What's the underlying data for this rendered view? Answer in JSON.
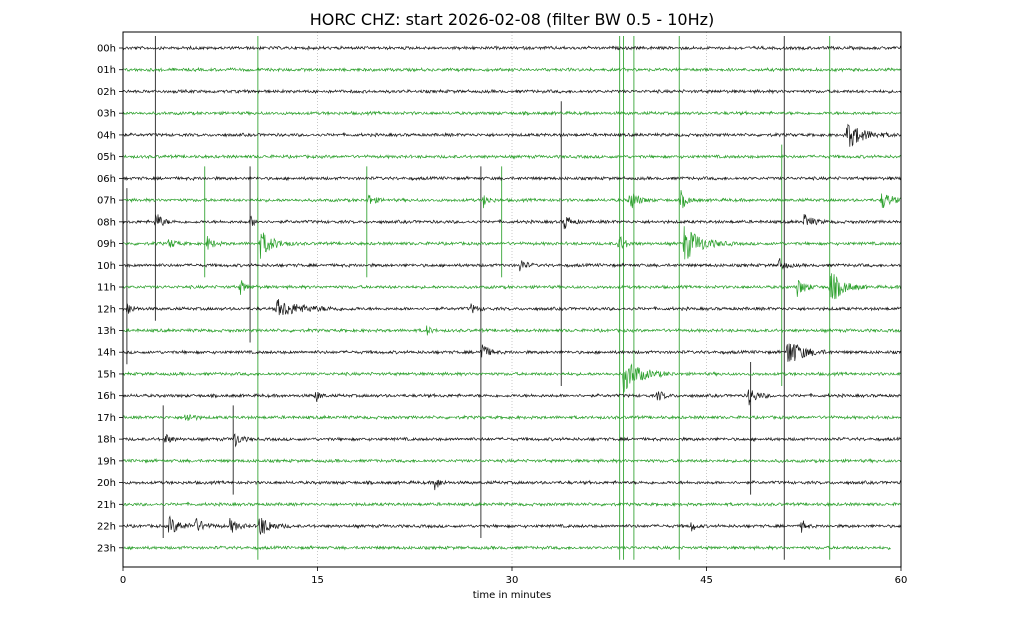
{
  "chart_data": {
    "type": "line",
    "title": "HORC CHZ: start 2026-02-08 (filter BW 0.5 - 10Hz)",
    "xlabel": "time in minutes",
    "ylabel": "",
    "xlim": [
      0,
      60
    ],
    "x_ticks": [
      0,
      15,
      30,
      45,
      60
    ],
    "x_tick_labels": [
      "0",
      "15",
      "30",
      "45",
      "60"
    ],
    "grid": "vertical dotted lines at 15, 30, 45",
    "rows": [
      {
        "label": "00h",
        "color": "#1a1a1a",
        "end": 60
      },
      {
        "label": "01h",
        "color": "#2ca02c",
        "end": 60
      },
      {
        "label": "02h",
        "color": "#1a1a1a",
        "end": 60
      },
      {
        "label": "03h",
        "color": "#2ca02c",
        "end": 60
      },
      {
        "label": "04h",
        "color": "#1a1a1a",
        "end": 60
      },
      {
        "label": "05h",
        "color": "#2ca02c",
        "end": 60
      },
      {
        "label": "06h",
        "color": "#1a1a1a",
        "end": 60
      },
      {
        "label": "07h",
        "color": "#2ca02c",
        "end": 60
      },
      {
        "label": "08h",
        "color": "#1a1a1a",
        "end": 60
      },
      {
        "label": "09h",
        "color": "#2ca02c",
        "end": 60
      },
      {
        "label": "10h",
        "color": "#1a1a1a",
        "end": 60
      },
      {
        "label": "11h",
        "color": "#2ca02c",
        "end": 60
      },
      {
        "label": "12h",
        "color": "#1a1a1a",
        "end": 60
      },
      {
        "label": "13h",
        "color": "#2ca02c",
        "end": 60
      },
      {
        "label": "14h",
        "color": "#1a1a1a",
        "end": 60
      },
      {
        "label": "15h",
        "color": "#2ca02c",
        "end": 60
      },
      {
        "label": "16h",
        "color": "#1a1a1a",
        "end": 60
      },
      {
        "label": "17h",
        "color": "#2ca02c",
        "end": 60
      },
      {
        "label": "18h",
        "color": "#1a1a1a",
        "end": 60
      },
      {
        "label": "19h",
        "color": "#2ca02c",
        "end": 60
      },
      {
        "label": "20h",
        "color": "#1a1a1a",
        "end": 60
      },
      {
        "label": "21h",
        "color": "#2ca02c",
        "end": 60
      },
      {
        "label": "22h",
        "color": "#1a1a1a",
        "end": 60
      },
      {
        "label": "23h",
        "color": "#2ca02c",
        "end": 59.2
      }
    ],
    "events": [
      {
        "row": 4,
        "t": 55.8,
        "amp": 14,
        "dur": 1.6
      },
      {
        "row": 7,
        "t": 39.0,
        "amp": 12,
        "dur": 0.8
      },
      {
        "row": 7,
        "t": 43.0,
        "amp": 10,
        "dur": 0.6
      },
      {
        "row": 7,
        "t": 18.8,
        "amp": 8,
        "dur": 0.6
      },
      {
        "row": 7,
        "t": 27.8,
        "amp": 7,
        "dur": 0.5
      },
      {
        "row": 7,
        "t": 58.5,
        "amp": 9,
        "dur": 1.0
      },
      {
        "row": 8,
        "t": 2.5,
        "amp": 11,
        "dur": 0.6
      },
      {
        "row": 8,
        "t": 34.0,
        "amp": 9,
        "dur": 0.6
      },
      {
        "row": 8,
        "t": 9.8,
        "amp": 7,
        "dur": 0.4
      },
      {
        "row": 8,
        "t": 52.5,
        "amp": 8,
        "dur": 0.8
      },
      {
        "row": 9,
        "t": 10.6,
        "amp": 14,
        "dur": 1.2
      },
      {
        "row": 9,
        "t": 43.2,
        "amp": 20,
        "dur": 1.6
      },
      {
        "row": 9,
        "t": 38.2,
        "amp": 10,
        "dur": 0.6
      },
      {
        "row": 9,
        "t": 3.5,
        "amp": 6,
        "dur": 0.6
      },
      {
        "row": 9,
        "t": 6.5,
        "amp": 7,
        "dur": 0.6
      },
      {
        "row": 10,
        "t": 30.6,
        "amp": 8,
        "dur": 0.5
      },
      {
        "row": 10,
        "t": 50.5,
        "amp": 8,
        "dur": 0.6
      },
      {
        "row": 11,
        "t": 54.5,
        "amp": 18,
        "dur": 1.2
      },
      {
        "row": 11,
        "t": 52.0,
        "amp": 9,
        "dur": 0.8
      },
      {
        "row": 11,
        "t": 9.0,
        "amp": 8,
        "dur": 0.6
      },
      {
        "row": 12,
        "t": 11.8,
        "amp": 9,
        "dur": 2.6
      },
      {
        "row": 12,
        "t": 0.3,
        "amp": 8,
        "dur": 0.5
      },
      {
        "row": 12,
        "t": 26.8,
        "amp": 5,
        "dur": 0.6
      },
      {
        "row": 13,
        "t": 23.4,
        "amp": 6,
        "dur": 0.4
      },
      {
        "row": 14,
        "t": 51.2,
        "amp": 16,
        "dur": 1.4
      },
      {
        "row": 14,
        "t": 27.6,
        "amp": 12,
        "dur": 0.6
      },
      {
        "row": 15,
        "t": 38.6,
        "amp": 18,
        "dur": 1.6
      },
      {
        "row": 16,
        "t": 48.2,
        "amp": 10,
        "dur": 0.8
      },
      {
        "row": 16,
        "t": 14.8,
        "amp": 8,
        "dur": 0.4
      },
      {
        "row": 16,
        "t": 41.2,
        "amp": 6,
        "dur": 0.6
      },
      {
        "row": 17,
        "t": 4.8,
        "amp": 7,
        "dur": 0.6
      },
      {
        "row": 18,
        "t": 8.5,
        "amp": 10,
        "dur": 0.6
      },
      {
        "row": 18,
        "t": 3.2,
        "amp": 7,
        "dur": 0.5
      },
      {
        "row": 20,
        "t": 24.0,
        "amp": 9,
        "dur": 0.5
      },
      {
        "row": 22,
        "t": 10.5,
        "amp": 12,
        "dur": 1.0
      },
      {
        "row": 22,
        "t": 3.5,
        "amp": 9,
        "dur": 1.2
      },
      {
        "row": 22,
        "t": 5.5,
        "amp": 7,
        "dur": 1.0
      },
      {
        "row": 22,
        "t": 8.2,
        "amp": 8,
        "dur": 0.8
      },
      {
        "row": 22,
        "t": 52.3,
        "amp": 8,
        "dur": 0.4
      },
      {
        "row": 22,
        "t": 43.8,
        "amp": 6,
        "dur": 0.4
      }
    ],
    "spikes": [
      {
        "t": 2.5,
        "color": "#1a1a1a",
        "row_from": 0,
        "row_to": 12
      },
      {
        "t": 10.4,
        "color": "#2ca02c",
        "row_from": 0,
        "row_to": 23
      },
      {
        "t": 38.3,
        "color": "#2ca02c",
        "row_from": 0,
        "row_to": 23
      },
      {
        "t": 38.6,
        "color": "#2ca02c",
        "row_from": 0,
        "row_to": 23
      },
      {
        "t": 39.4,
        "color": "#2ca02c",
        "row_from": 0,
        "row_to": 23
      },
      {
        "t": 42.9,
        "color": "#2ca02c",
        "row_from": 0,
        "row_to": 23
      },
      {
        "t": 51.0,
        "color": "#1a1a1a",
        "row_from": 0,
        "row_to": 23
      },
      {
        "t": 54.5,
        "color": "#2ca02c",
        "row_from": 0,
        "row_to": 23
      },
      {
        "t": 3.1,
        "color": "#1a1a1a",
        "row_from": 17,
        "row_to": 22
      },
      {
        "t": 8.5,
        "color": "#1a1a1a",
        "row_from": 17,
        "row_to": 20
      },
      {
        "t": 48.4,
        "color": "#1a1a1a",
        "row_from": 15,
        "row_to": 20
      },
      {
        "t": 27.6,
        "color": "#1a1a1a",
        "row_from": 6,
        "row_to": 22
      },
      {
        "t": 29.2,
        "color": "#2ca02c",
        "row_from": 6,
        "row_to": 10
      },
      {
        "t": 33.8,
        "color": "#1a1a1a",
        "row_from": 3,
        "row_to": 15
      },
      {
        "t": 6.3,
        "color": "#2ca02c",
        "row_from": 6,
        "row_to": 10
      },
      {
        "t": 9.8,
        "color": "#1a1a1a",
        "row_from": 6,
        "row_to": 13
      },
      {
        "t": 18.8,
        "color": "#2ca02c",
        "row_from": 6,
        "row_to": 10
      },
      {
        "t": 0.3,
        "color": "#1a1a1a",
        "row_from": 7,
        "row_to": 14
      },
      {
        "t": 50.8,
        "color": "#2ca02c",
        "row_from": 5,
        "row_to": 15
      }
    ]
  }
}
